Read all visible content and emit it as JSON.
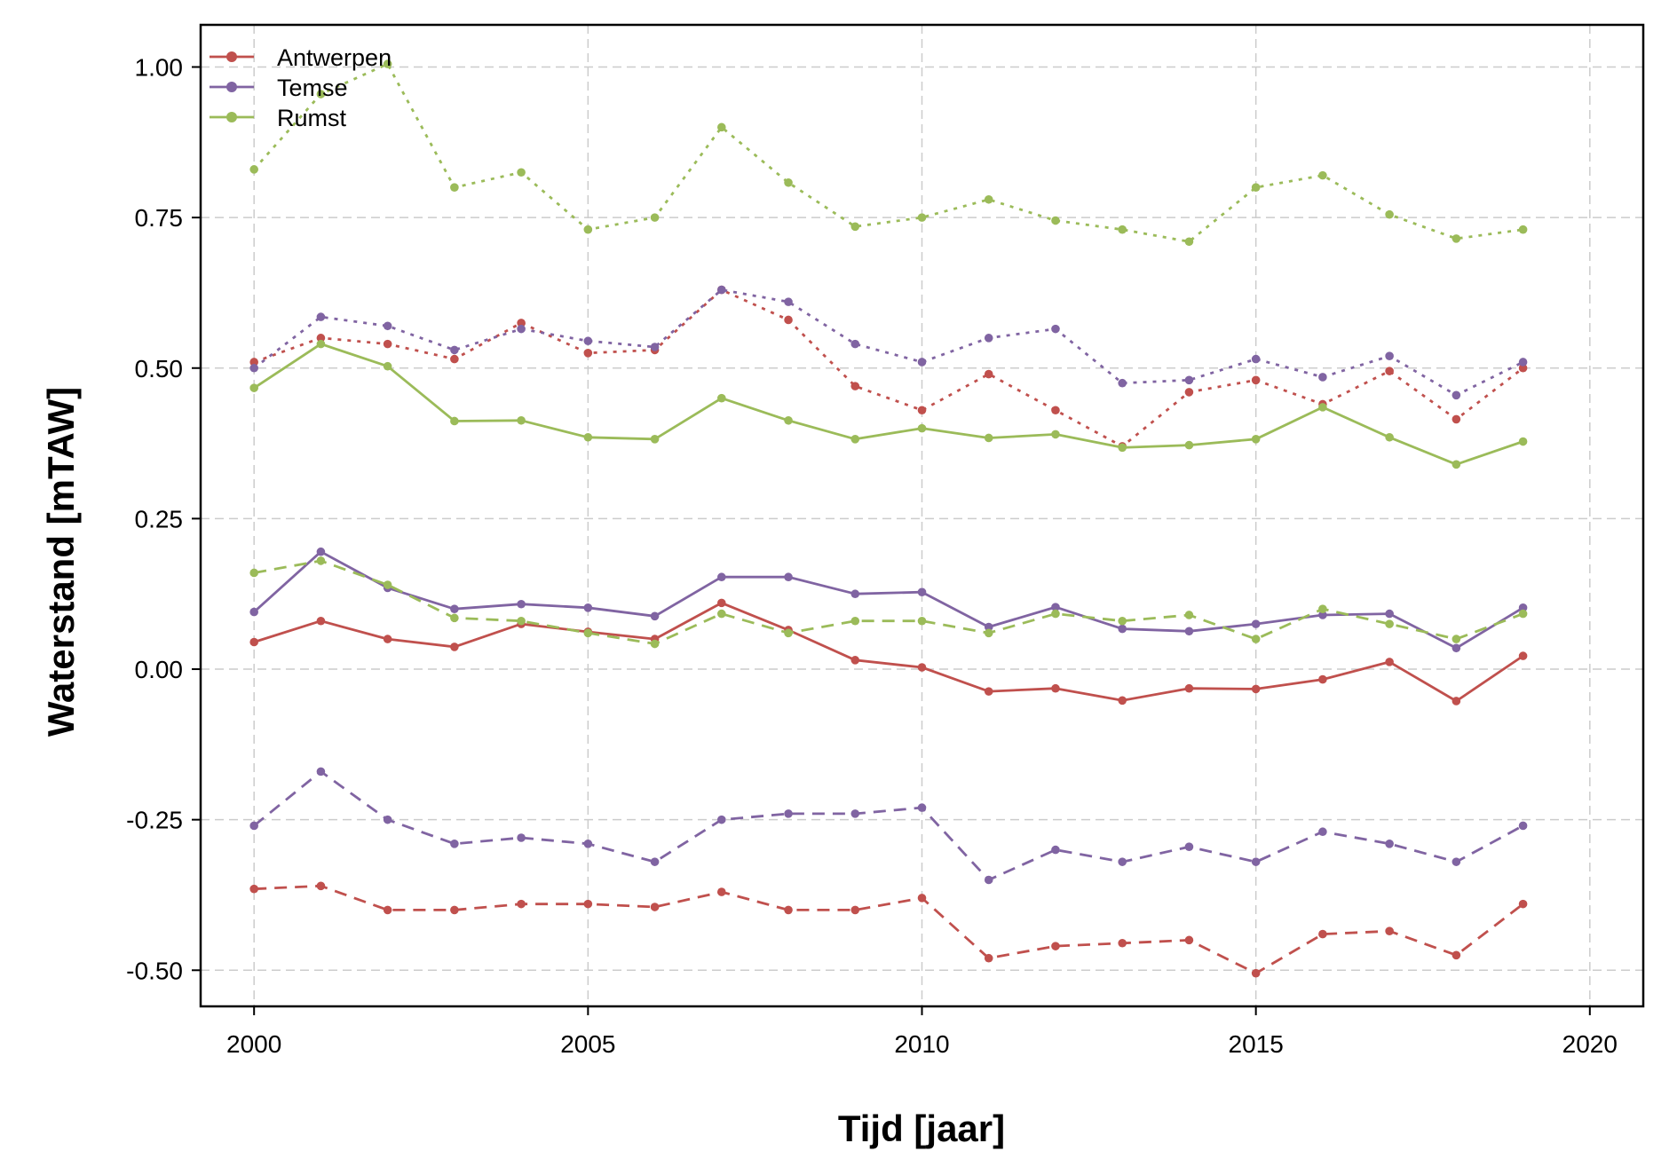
{
  "chart_data": {
    "type": "line",
    "title": "",
    "xlabel": "Tijd [jaar]",
    "ylabel": "Waterstand [mTAW]",
    "xlim": [
      1999.2,
      2020.8
    ],
    "ylim": [
      -0.56,
      1.07
    ],
    "xticks": [
      2000,
      2005,
      2010,
      2015,
      2020
    ],
    "xtick_labels": [
      "2000",
      "2005",
      "2010",
      "2015",
      "2020"
    ],
    "yticks": [
      1.0,
      0.75,
      0.5,
      0.25,
      0.0,
      -0.25,
      -0.5
    ],
    "ytick_labels": [
      "1.00",
      "0.75",
      "0.50",
      "0.25",
      "0.00",
      "-0.25",
      "-0.50"
    ],
    "grid": true,
    "legend_position": "top-left",
    "legend": [
      {
        "label": "Antwerpen",
        "color": "#c0504d"
      },
      {
        "label": "Temse",
        "color": "#8064a2"
      },
      {
        "label": "Rumst",
        "color": "#9bbb59"
      }
    ],
    "x": [
      2000,
      2001,
      2002,
      2003,
      2004,
      2005,
      2006,
      2007,
      2008,
      2009,
      2010,
      2011,
      2012,
      2013,
      2014,
      2015,
      2016,
      2017,
      2018,
      2019
    ],
    "series": [
      {
        "station": "Antwerpen",
        "style": "solid",
        "color": "#c0504d",
        "values": [
          0.045,
          0.08,
          0.05,
          0.037,
          0.075,
          0.062,
          0.05,
          0.11,
          0.065,
          0.015,
          0.003,
          -0.037,
          -0.032,
          -0.052,
          -0.032,
          -0.033,
          -0.017,
          0.012,
          -0.053,
          0.022
        ]
      },
      {
        "station": "Antwerpen",
        "style": "dashed",
        "color": "#c0504d",
        "values": [
          -0.365,
          -0.36,
          -0.4,
          -0.4,
          -0.39,
          -0.39,
          -0.395,
          -0.37,
          -0.4,
          -0.4,
          -0.38,
          -0.48,
          -0.46,
          -0.455,
          -0.45,
          -0.505,
          -0.44,
          -0.435,
          -0.475,
          -0.39
        ]
      },
      {
        "station": "Antwerpen",
        "style": "dotted",
        "color": "#c0504d",
        "values": [
          0.51,
          0.55,
          0.54,
          0.515,
          0.575,
          0.525,
          0.53,
          0.63,
          0.58,
          0.47,
          0.43,
          0.49,
          0.43,
          0.37,
          0.46,
          0.48,
          0.44,
          0.495,
          0.415,
          0.5
        ]
      },
      {
        "station": "Temse",
        "style": "solid",
        "color": "#8064a2",
        "values": [
          0.095,
          0.195,
          0.135,
          0.1,
          0.108,
          0.102,
          0.088,
          0.153,
          0.153,
          0.125,
          0.128,
          0.07,
          0.103,
          0.067,
          0.063,
          0.075,
          0.09,
          0.092,
          0.035,
          0.102
        ]
      },
      {
        "station": "Temse",
        "style": "dashed",
        "color": "#8064a2",
        "values": [
          -0.26,
          -0.17,
          -0.25,
          -0.29,
          -0.28,
          -0.29,
          -0.32,
          -0.25,
          -0.24,
          -0.24,
          -0.23,
          -0.35,
          -0.3,
          -0.32,
          -0.295,
          -0.32,
          -0.27,
          -0.29,
          -0.32,
          -0.26
        ]
      },
      {
        "station": "Temse",
        "style": "dotted",
        "color": "#8064a2",
        "values": [
          0.5,
          0.585,
          0.57,
          0.53,
          0.565,
          0.545,
          0.535,
          0.63,
          0.61,
          0.54,
          0.51,
          0.55,
          0.565,
          0.475,
          0.48,
          0.515,
          0.485,
          0.52,
          0.455,
          0.51
        ]
      },
      {
        "station": "Rumst",
        "style": "solid",
        "color": "#9bbb59",
        "values": [
          0.467,
          0.54,
          0.503,
          0.412,
          0.413,
          0.385,
          0.382,
          0.45,
          0.413,
          0.382,
          0.4,
          0.384,
          0.39,
          0.368,
          0.372,
          0.382,
          0.435,
          0.385,
          0.34,
          0.378
        ]
      },
      {
        "station": "Rumst",
        "style": "dashed",
        "color": "#9bbb59",
        "values": [
          0.16,
          0.18,
          0.14,
          0.085,
          0.08,
          0.06,
          0.042,
          0.092,
          0.06,
          0.08,
          0.08,
          0.06,
          0.092,
          0.08,
          0.09,
          0.05,
          0.1,
          0.075,
          0.05,
          0.092
        ]
      },
      {
        "station": "Rumst",
        "style": "dotted",
        "color": "#9bbb59",
        "values": [
          0.83,
          0.955,
          1.005,
          0.8,
          0.825,
          0.73,
          0.75,
          0.9,
          0.808,
          0.735,
          0.75,
          0.78,
          0.745,
          0.73,
          0.71,
          0.8,
          0.82,
          0.755,
          0.715,
          0.73
        ]
      }
    ]
  }
}
